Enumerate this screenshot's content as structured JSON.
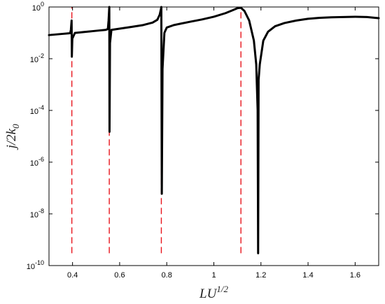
{
  "chart_data": {
    "type": "line",
    "xlabel": "LU^1/2",
    "ylabel": "j/2k_0",
    "xscale": "linear",
    "yscale": "log",
    "xlim": [
      0.3,
      1.7
    ],
    "ylim": [
      1e-10,
      1
    ],
    "x_ticks": [
      0.4,
      0.6,
      0.8,
      1.0,
      1.2,
      1.4,
      1.6
    ],
    "x_tick_labels": [
      "0.4",
      "0.6",
      "0.8",
      "1",
      "1.2",
      "1.4",
      "1.6"
    ],
    "y_ticks": [
      1e-10,
      1e-08,
      1e-06,
      0.0001,
      0.01,
      1
    ],
    "y_tick_labels": [
      {
        "base": "10",
        "exp": "-10"
      },
      {
        "base": "10",
        "exp": "-8"
      },
      {
        "base": "10",
        "exp": "-6"
      },
      {
        "base": "10",
        "exp": "-4"
      },
      {
        "base": "10",
        "exp": "-2"
      },
      {
        "base": "10",
        "exp": "0"
      }
    ],
    "grid": false,
    "series": [
      {
        "color": "#000000",
        "style": "solid",
        "points": [
          [
            0.3,
            0.082
          ],
          [
            0.35,
            0.09
          ],
          [
            0.39,
            0.097
          ],
          [
            0.393,
            0.13
          ],
          [
            0.396,
            0.3
          ],
          [
            0.397,
            0.012
          ],
          [
            0.399,
            0.06
          ],
          [
            0.41,
            0.099
          ],
          [
            0.45,
            0.108
          ],
          [
            0.5,
            0.12
          ],
          [
            0.54,
            0.13
          ],
          [
            0.55,
            0.14
          ],
          [
            0.553,
            0.3
          ],
          [
            0.556,
            1.0
          ],
          [
            0.557,
            1.5e-05
          ],
          [
            0.559,
            0.04
          ],
          [
            0.565,
            0.13
          ],
          [
            0.6,
            0.145
          ],
          [
            0.65,
            0.17
          ],
          [
            0.7,
            0.2
          ],
          [
            0.74,
            0.25
          ],
          [
            0.76,
            0.32
          ],
          [
            0.77,
            0.5
          ],
          [
            0.775,
            0.8
          ],
          [
            0.777,
            1.0
          ],
          [
            0.779,
            6e-08
          ],
          [
            0.782,
            0.004
          ],
          [
            0.79,
            0.1
          ],
          [
            0.8,
            0.16
          ],
          [
            0.83,
            0.2
          ],
          [
            0.9,
            0.27
          ],
          [
            0.95,
            0.33
          ],
          [
            1.0,
            0.42
          ],
          [
            1.05,
            0.58
          ],
          [
            1.08,
            0.75
          ],
          [
            1.1,
            0.9
          ],
          [
            1.115,
            0.93
          ],
          [
            1.13,
            0.7
          ],
          [
            1.15,
            0.3
          ],
          [
            1.17,
            0.05
          ],
          [
            1.18,
            0.006
          ],
          [
            1.186,
            0.0001
          ],
          [
            1.188,
            3e-10
          ],
          [
            1.19,
            0.0015
          ],
          [
            1.195,
            0.006
          ],
          [
            1.21,
            0.05
          ],
          [
            1.23,
            0.11
          ],
          [
            1.26,
            0.18
          ],
          [
            1.3,
            0.24
          ],
          [
            1.35,
            0.3
          ],
          [
            1.4,
            0.35
          ],
          [
            1.45,
            0.38
          ],
          [
            1.5,
            0.4
          ],
          [
            1.55,
            0.41
          ],
          [
            1.6,
            0.42
          ],
          [
            1.65,
            0.41
          ],
          [
            1.7,
            0.37
          ]
        ]
      }
    ],
    "vertical_lines": {
      "color": "#e8141c",
      "style": "dashed",
      "x": [
        0.397,
        0.556,
        0.777,
        1.115
      ],
      "y_range": [
        3e-10,
        1
      ]
    }
  }
}
